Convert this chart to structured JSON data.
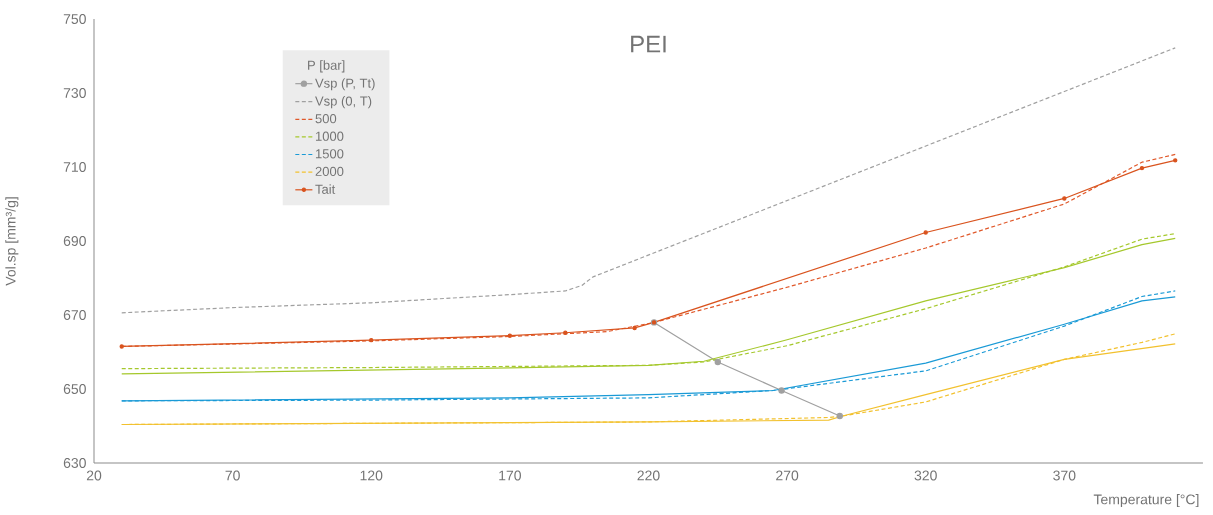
{
  "chart_data": {
    "type": "line",
    "title": "PEI",
    "xlabel": "Temperature [°C]",
    "ylabel": "Vol.sp [mm³/g]",
    "legend_title": "P [bar]",
    "legend": "top left",
    "grid": false,
    "xlim": [
      20,
      420
    ],
    "xticks": [
      20,
      70,
      120,
      170,
      220,
      270,
      320,
      370
    ],
    "ylim": [
      630,
      750
    ],
    "yticks": [
      630,
      650,
      670,
      690,
      710,
      730,
      750
    ],
    "series": [
      {
        "name": "Vsp (P, Tt)",
        "color": "#a0a0a0",
        "line_style": "solid",
        "marker": "circle",
        "x": [
          222,
          245,
          268,
          289
        ],
        "values": [
          668,
          657.3,
          649.6,
          642.7
        ]
      },
      {
        "name": "Vsp (0, T)",
        "color": "#a0a0a0",
        "line_style": "dashed",
        "marker": "none",
        "x": [
          30,
          70,
          120,
          170,
          190,
          196,
          200,
          410
        ],
        "values": [
          670.6,
          672,
          673.3,
          675.5,
          676.5,
          678,
          680.3,
          742.2
        ]
      },
      {
        "name": "500",
        "color": "#e0582a",
        "line_style": "dashed",
        "marker": "none",
        "x": [
          30,
          120,
          170,
          205,
          222,
          270,
          320,
          370,
          398,
          410
        ],
        "values": [
          661.5,
          663,
          664.2,
          665.5,
          668,
          677.5,
          688.1,
          700,
          711.3,
          713.4
        ]
      },
      {
        "name": "1000",
        "color": "#a5c82c",
        "line_style": "dashed",
        "marker": "none",
        "x": [
          30,
          120,
          220,
          240,
          270,
          320,
          370,
          398,
          410
        ],
        "values": [
          655.5,
          655.8,
          656.4,
          657.3,
          661.7,
          671.7,
          683,
          690.5,
          692
        ]
      },
      {
        "name": "1500",
        "color": "#1a9ad6",
        "line_style": "dashed",
        "marker": "none",
        "x": [
          30,
          120,
          220,
          265,
          320,
          370,
          398,
          410
        ],
        "values": [
          646.8,
          647,
          647.6,
          649.6,
          654.9,
          667,
          675,
          676.5
        ]
      },
      {
        "name": "2000",
        "color": "#f2c12e",
        "line_style": "dashed",
        "marker": "none",
        "x": [
          30,
          170,
          220,
          285,
          290,
          320,
          370,
          398,
          410
        ],
        "values": [
          640.4,
          640.9,
          641.1,
          642.3,
          642.7,
          646.5,
          658,
          662.6,
          664.9
        ]
      },
      {
        "name": "Tait",
        "color": "#d9531e",
        "line_style": "solid",
        "marker": "circle",
        "x": [
          30,
          120,
          170,
          190,
          215,
          222,
          320,
          370,
          398,
          410
        ],
        "values": [
          661.5,
          663.2,
          664.4,
          665.2,
          666.5,
          668,
          692.3,
          701.5,
          709.7,
          711.8
        ]
      },
      {
        "color": "#a5c82c",
        "line_style": "solid",
        "marker": "none",
        "x": [
          30,
          170,
          220,
          240,
          270,
          320,
          370,
          398,
          410
        ],
        "values": [
          654.1,
          655.7,
          656.4,
          657.5,
          663.3,
          673.8,
          682.8,
          689,
          690.7
        ]
      },
      {
        "color": "#1a9ad6",
        "line_style": "solid",
        "marker": "none",
        "x": [
          30,
          170,
          220,
          265,
          320,
          370,
          398,
          410
        ],
        "values": [
          646.8,
          647.6,
          648.5,
          649.6,
          657,
          667.5,
          673.8,
          674.9
        ]
      },
      {
        "color": "#f2c12e",
        "line_style": "solid",
        "marker": "none",
        "x": [
          30,
          170,
          220,
          285,
          290,
          320,
          370,
          410
        ],
        "values": [
          640.4,
          640.9,
          641.1,
          641.6,
          642.7,
          648.5,
          658,
          662.2
        ]
      }
    ]
  }
}
